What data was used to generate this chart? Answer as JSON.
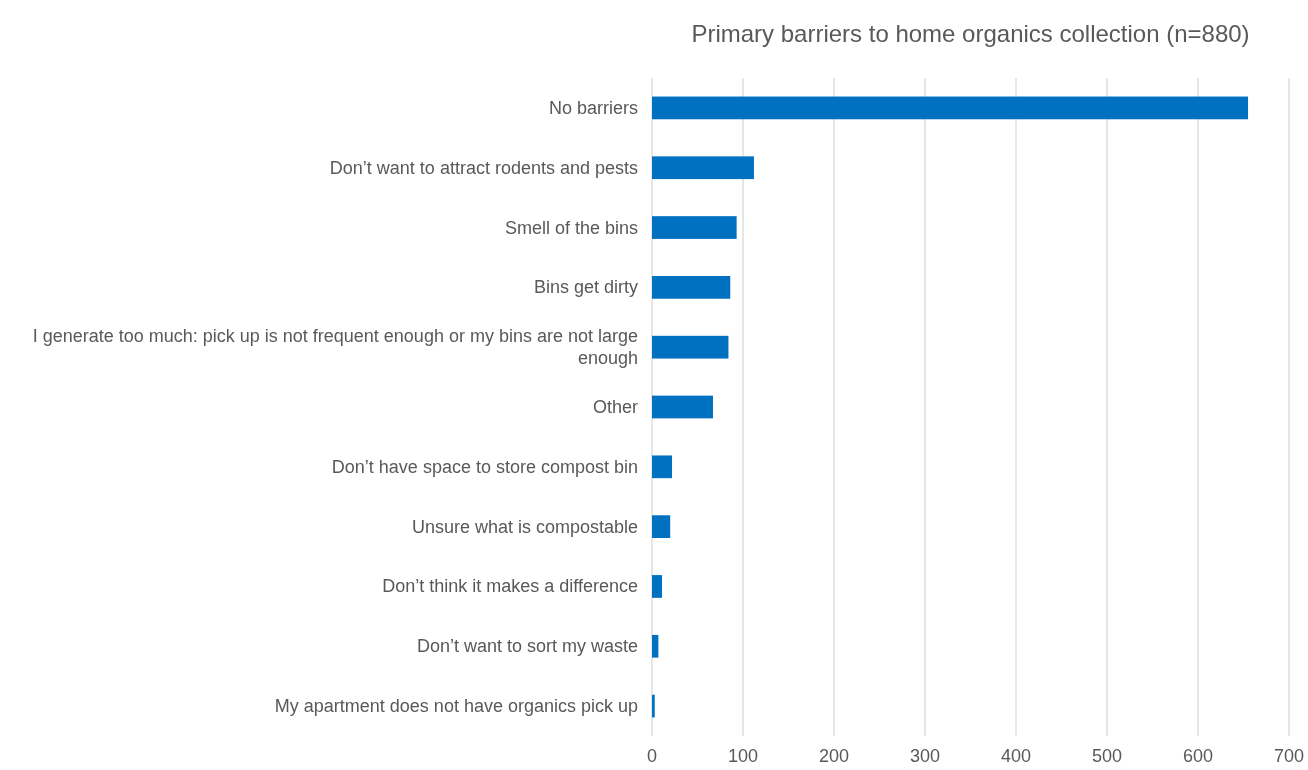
{
  "chart_data": {
    "type": "bar",
    "orientation": "horizontal",
    "title": "Primary barriers to home organics collection (n=880)",
    "categories": [
      "No barriers",
      "Don’t want to attract rodents and pests",
      "Smell of the bins",
      "Bins get dirty",
      "I generate too much: pick up is not frequent enough or my bins are not large enough",
      "Other",
      "Don’t have space to store compost bin",
      "Unsure what is compostable",
      "Don’t think it makes a difference",
      "Don’t want to sort my waste",
      "My apartment does not have organics pick up"
    ],
    "values": [
      655,
      112,
      93,
      86,
      84,
      67,
      22,
      20,
      11,
      7,
      3
    ],
    "color": "#0070c0",
    "xlim": [
      0,
      700
    ],
    "xticks": [
      0,
      100,
      200,
      300,
      400,
      500,
      600,
      700
    ],
    "grid": "x"
  }
}
